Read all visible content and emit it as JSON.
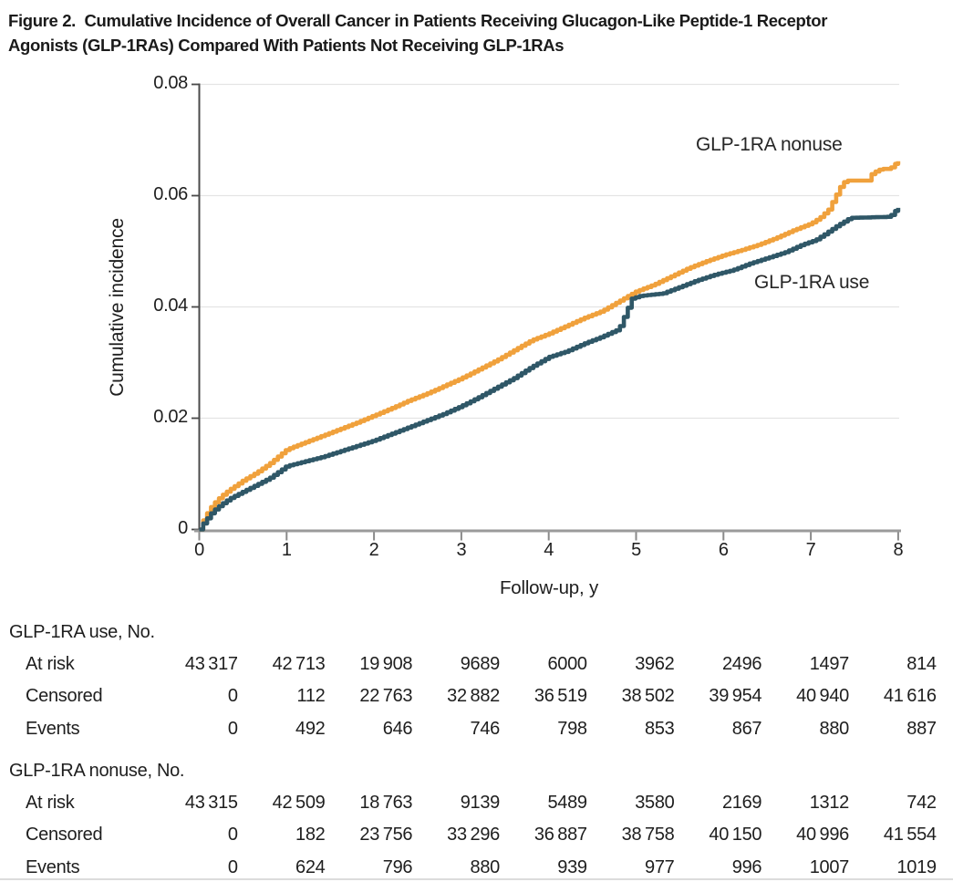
{
  "figure": {
    "title_line1": "Figure 2.  Cumulative Incidence of Overall Cancer in Patients Receiving Glucagon-Like Peptide-1 Receptor",
    "title_line2": "Agonists (GLP-1RAs) Compared With Patients Not Receiving GLP-1RAs"
  },
  "chart_data": {
    "type": "line",
    "subtype": "cumulative-incidence-step-curves",
    "title": "Cumulative Incidence of Overall Cancer",
    "xlabel": "Follow-up, y",
    "ylabel": "Cumulative incidence",
    "xlim": [
      0,
      8
    ],
    "ylim": [
      0,
      0.08
    ],
    "x_ticks": [
      0,
      1,
      2,
      3,
      4,
      5,
      6,
      7,
      8
    ],
    "y_ticks": [
      "0",
      "0.02",
      "0.04",
      "0.06",
      "0.08"
    ],
    "y_tick_values": [
      0,
      0.02,
      0.04,
      0.06,
      0.08
    ],
    "grid": "horizontal",
    "grid_color": "#e4e4e4",
    "axis_color": "#4a4a4a",
    "baseline_color": "#9a9a9a",
    "legend_position": "inline-labels",
    "series": [
      {
        "name": "GLP-1RA nonuse",
        "color": "#F0A13C",
        "points": [
          [
            0,
            0
          ],
          [
            0.05,
            0.0018
          ],
          [
            0.1,
            0.0032
          ],
          [
            0.15,
            0.0044
          ],
          [
            0.25,
            0.006
          ],
          [
            0.35,
            0.0072
          ],
          [
            0.5,
            0.0088
          ],
          [
            0.65,
            0.0102
          ],
          [
            0.8,
            0.0118
          ],
          [
            1.0,
            0.0144
          ],
          [
            1.2,
            0.0156
          ],
          [
            1.4,
            0.0168
          ],
          [
            1.6,
            0.018
          ],
          [
            1.8,
            0.0192
          ],
          [
            2.0,
            0.0205
          ],
          [
            2.2,
            0.0218
          ],
          [
            2.4,
            0.0232
          ],
          [
            2.6,
            0.0244
          ],
          [
            2.8,
            0.0258
          ],
          [
            3.0,
            0.0272
          ],
          [
            3.2,
            0.0288
          ],
          [
            3.4,
            0.0304
          ],
          [
            3.6,
            0.0322
          ],
          [
            3.8,
            0.034
          ],
          [
            4.0,
            0.0352
          ],
          [
            4.2,
            0.0366
          ],
          [
            4.4,
            0.038
          ],
          [
            4.6,
            0.0392
          ],
          [
            4.8,
            0.041
          ],
          [
            5.0,
            0.0428
          ],
          [
            5.2,
            0.044
          ],
          [
            5.4,
            0.0455
          ],
          [
            5.6,
            0.047
          ],
          [
            5.8,
            0.0482
          ],
          [
            6.0,
            0.0493
          ],
          [
            6.2,
            0.0502
          ],
          [
            6.4,
            0.0512
          ],
          [
            6.6,
            0.0524
          ],
          [
            6.8,
            0.0538
          ],
          [
            7.0,
            0.055
          ],
          [
            7.1,
            0.056
          ],
          [
            7.2,
            0.0575
          ],
          [
            7.35,
            0.062
          ],
          [
            7.4,
            0.0627
          ],
          [
            7.65,
            0.0627
          ],
          [
            7.7,
            0.064
          ],
          [
            7.8,
            0.0648
          ],
          [
            7.9,
            0.0648
          ],
          [
            7.95,
            0.0655
          ],
          [
            8.0,
            0.0662
          ]
        ]
      },
      {
        "name": "GLP-1RA use",
        "color": "#2F5767",
        "points": [
          [
            0,
            0
          ],
          [
            0.05,
            0.0012
          ],
          [
            0.1,
            0.0022
          ],
          [
            0.15,
            0.0032
          ],
          [
            0.25,
            0.0045
          ],
          [
            0.35,
            0.0056
          ],
          [
            0.5,
            0.0068
          ],
          [
            0.65,
            0.008
          ],
          [
            0.8,
            0.0092
          ],
          [
            1.0,
            0.0114
          ],
          [
            1.2,
            0.0122
          ],
          [
            1.4,
            0.013
          ],
          [
            1.6,
            0.014
          ],
          [
            1.8,
            0.015
          ],
          [
            2.0,
            0.016
          ],
          [
            2.2,
            0.0172
          ],
          [
            2.4,
            0.0184
          ],
          [
            2.6,
            0.0196
          ],
          [
            2.8,
            0.0208
          ],
          [
            3.0,
            0.0222
          ],
          [
            3.2,
            0.0238
          ],
          [
            3.4,
            0.0255
          ],
          [
            3.6,
            0.0272
          ],
          [
            3.8,
            0.0292
          ],
          [
            4.0,
            0.031
          ],
          [
            4.2,
            0.032
          ],
          [
            4.4,
            0.0334
          ],
          [
            4.6,
            0.0346
          ],
          [
            4.8,
            0.036
          ],
          [
            4.95,
            0.0415
          ],
          [
            5.05,
            0.042
          ],
          [
            5.3,
            0.0424
          ],
          [
            5.5,
            0.0436
          ],
          [
            5.7,
            0.0448
          ],
          [
            5.9,
            0.0458
          ],
          [
            6.1,
            0.0466
          ],
          [
            6.3,
            0.0478
          ],
          [
            6.5,
            0.0488
          ],
          [
            6.7,
            0.0498
          ],
          [
            6.9,
            0.0512
          ],
          [
            7.05,
            0.052
          ],
          [
            7.15,
            0.053
          ],
          [
            7.3,
            0.0546
          ],
          [
            7.45,
            0.056
          ],
          [
            7.9,
            0.0562
          ],
          [
            8.0,
            0.0578
          ]
        ]
      }
    ]
  },
  "risk_table": {
    "groups": [
      {
        "header": "GLP-1RA use, No.",
        "rows": [
          {
            "label": "At risk",
            "values": [
              "43 317",
              "42 713",
              "19 908",
              "9689",
              "6000",
              "3962",
              "2496",
              "1497",
              "814"
            ]
          },
          {
            "label": "Censored",
            "values": [
              "0",
              "112",
              "22 763",
              "32 882",
              "36 519",
              "38 502",
              "39 954",
              "40 940",
              "41 616"
            ]
          },
          {
            "label": "Events",
            "values": [
              "0",
              "492",
              "646",
              "746",
              "798",
              "853",
              "867",
              "880",
              "887"
            ]
          }
        ]
      },
      {
        "header": "GLP-1RA nonuse, No.",
        "rows": [
          {
            "label": "At risk",
            "values": [
              "43 315",
              "42 509",
              "18 763",
              "9139",
              "5489",
              "3580",
              "2169",
              "1312",
              "742"
            ]
          },
          {
            "label": "Censored",
            "values": [
              "0",
              "182",
              "23 756",
              "33 296",
              "36 887",
              "38 758",
              "40 150",
              "40 996",
              "41 554"
            ]
          },
          {
            "label": "Events",
            "values": [
              "0",
              "624",
              "796",
              "880",
              "939",
              "977",
              "996",
              "1007",
              "1019"
            ]
          }
        ]
      }
    ]
  }
}
